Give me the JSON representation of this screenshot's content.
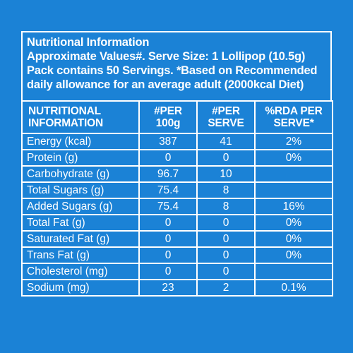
{
  "info": {
    "line1": "Nutritional Information",
    "line2": "Approximate Values#. Serve Size: 1 Lollipop (10.5g)",
    "line3": "Pack contains 50 Servings. *Based on Recommended",
    "line4": "daily allowance for an average adult (2000kcal Diet)"
  },
  "table": {
    "headers": {
      "nutrient_1": "NUTRITIONAL",
      "nutrient_2": "INFORMATION",
      "per100_1": "#PER",
      "per100_2": "100g",
      "perserve_1": "#PER",
      "perserve_2": "SERVE",
      "rda_1": "%RDA PER",
      "rda_2": "SERVE*"
    },
    "rows": [
      {
        "name": "Energy (kcal)",
        "per100": "387",
        "perserve": "41",
        "rda": "2%"
      },
      {
        "name": "Protein (g)",
        "per100": "0",
        "perserve": "0",
        "rda": "0%"
      },
      {
        "name": "Carbohydrate (g)",
        "per100": "96.7",
        "perserve": "10",
        "rda": ""
      },
      {
        "name": "Total Sugars (g)",
        "per100": "75.4",
        "perserve": "8",
        "rda": ""
      },
      {
        "name": "Added Sugars (g)",
        "per100": "75.4",
        "perserve": "8",
        "rda": "16%"
      },
      {
        "name": "Total Fat (g)",
        "per100": "0",
        "perserve": "0",
        "rda": "0%"
      },
      {
        "name": "Saturated Fat (g)",
        "per100": "0",
        "perserve": "0",
        "rda": "0%"
      },
      {
        "name": "Trans Fat (g)",
        "per100": "0",
        "perserve": "0",
        "rda": "0%"
      },
      {
        "name": "Cholesterol (mg)",
        "per100": "0",
        "perserve": "0",
        "rda": ""
      },
      {
        "name": "Sodium (mg)",
        "per100": "23",
        "perserve": "2",
        "rda": "0.1%"
      }
    ]
  },
  "colors": {
    "background": "#1b82d6",
    "text": "#ffffff",
    "border": "#ffffff"
  }
}
